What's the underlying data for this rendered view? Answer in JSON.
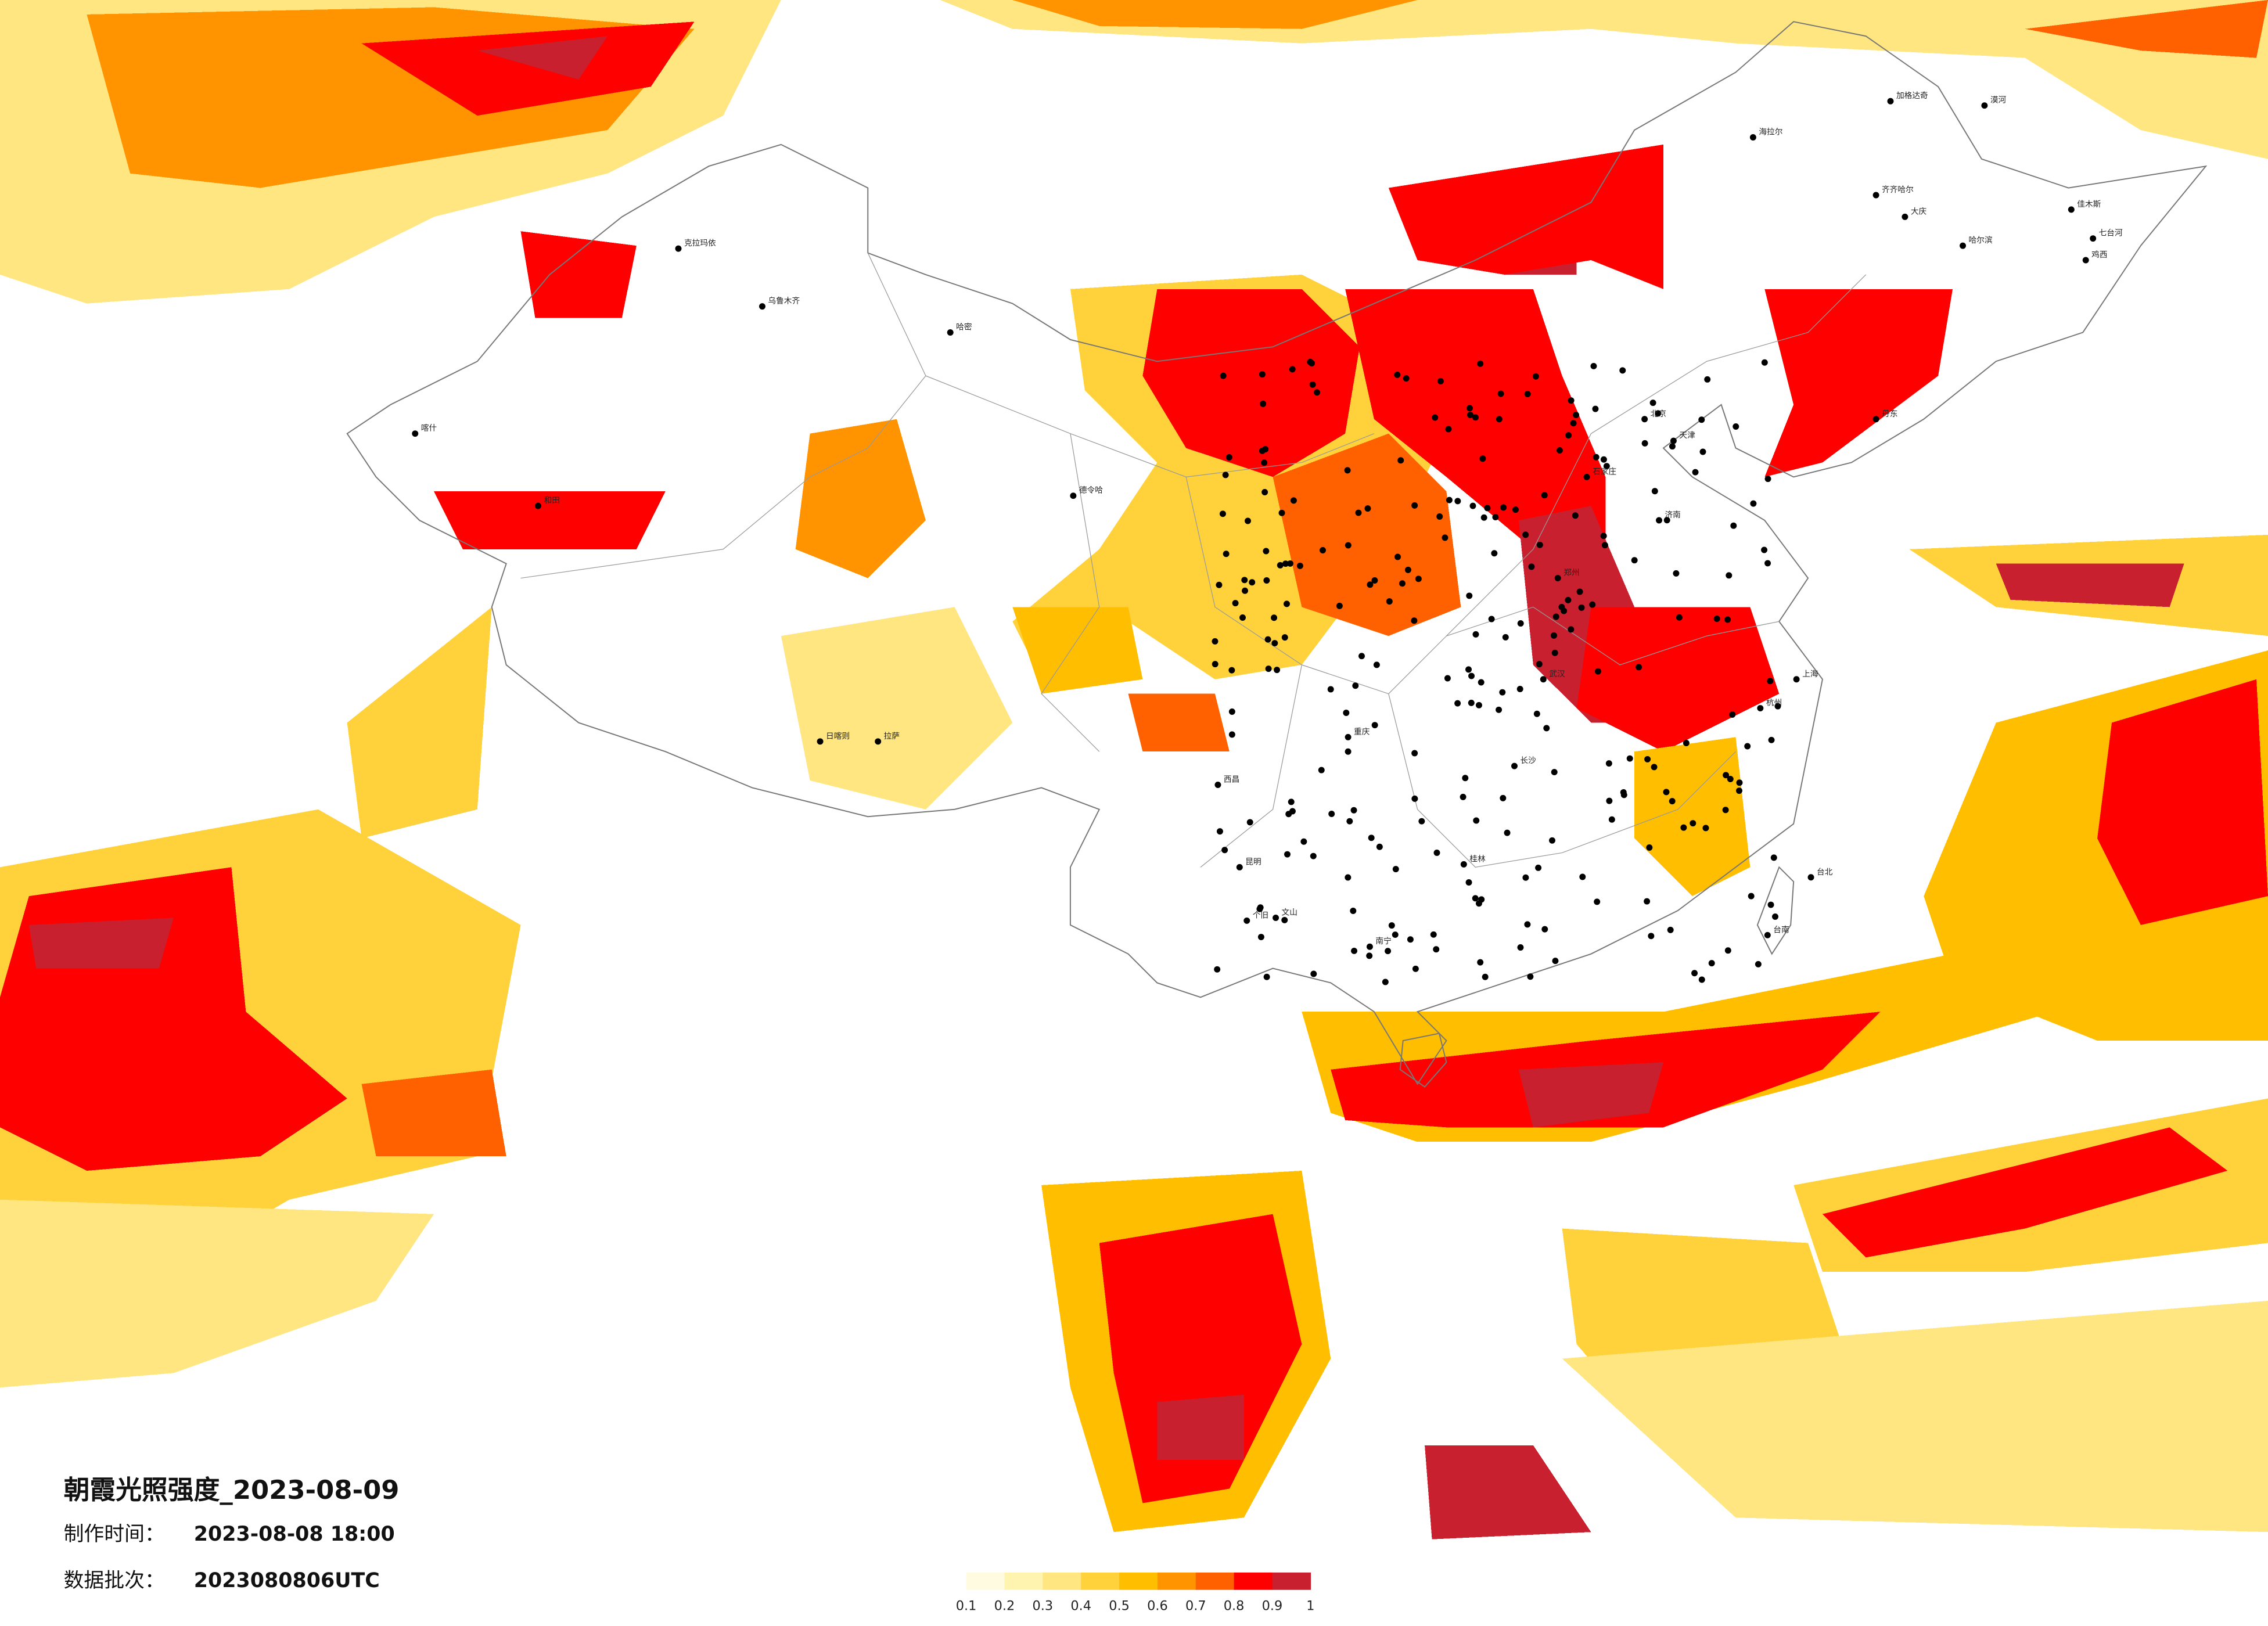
{
  "title": "朝霞光照强度_2023-08-09",
  "made_label": "制作时间：",
  "made_time": "2023-08-08 18:00",
  "batch_label": "数据批次：",
  "batch": "2023080806UTC",
  "legend": {
    "colors": [
      "#fffbe0",
      "#fff3b0",
      "#ffe680",
      "#ffd23c",
      "#ffbe00",
      "#ff9400",
      "#ff6000",
      "#ff0000",
      "#c8202e"
    ],
    "ticks": [
      0.1,
      0.2,
      0.3,
      0.4,
      0.5,
      0.6,
      0.7,
      0.8,
      0.9,
      1
    ]
  },
  "cities": [
    "漠河",
    "加格达奇",
    "海拉尔",
    "齐齐哈尔",
    "大庆",
    "哈尔滨",
    "佳木斯",
    "七台河",
    "鸡西",
    "克拉玛依",
    "乌鲁木齐",
    "哈密",
    "喀什",
    "和田",
    "德令哈",
    "日喀则",
    "拉萨",
    "北京",
    "天津",
    "石家庄",
    "济南",
    "郑州",
    "武汉",
    "长沙",
    "重庆",
    "西昌",
    "昆明",
    "个旧",
    "文山",
    "南宁",
    "桂林",
    "杭州",
    "上海",
    "台北",
    "台南",
    "丹东"
  ]
}
